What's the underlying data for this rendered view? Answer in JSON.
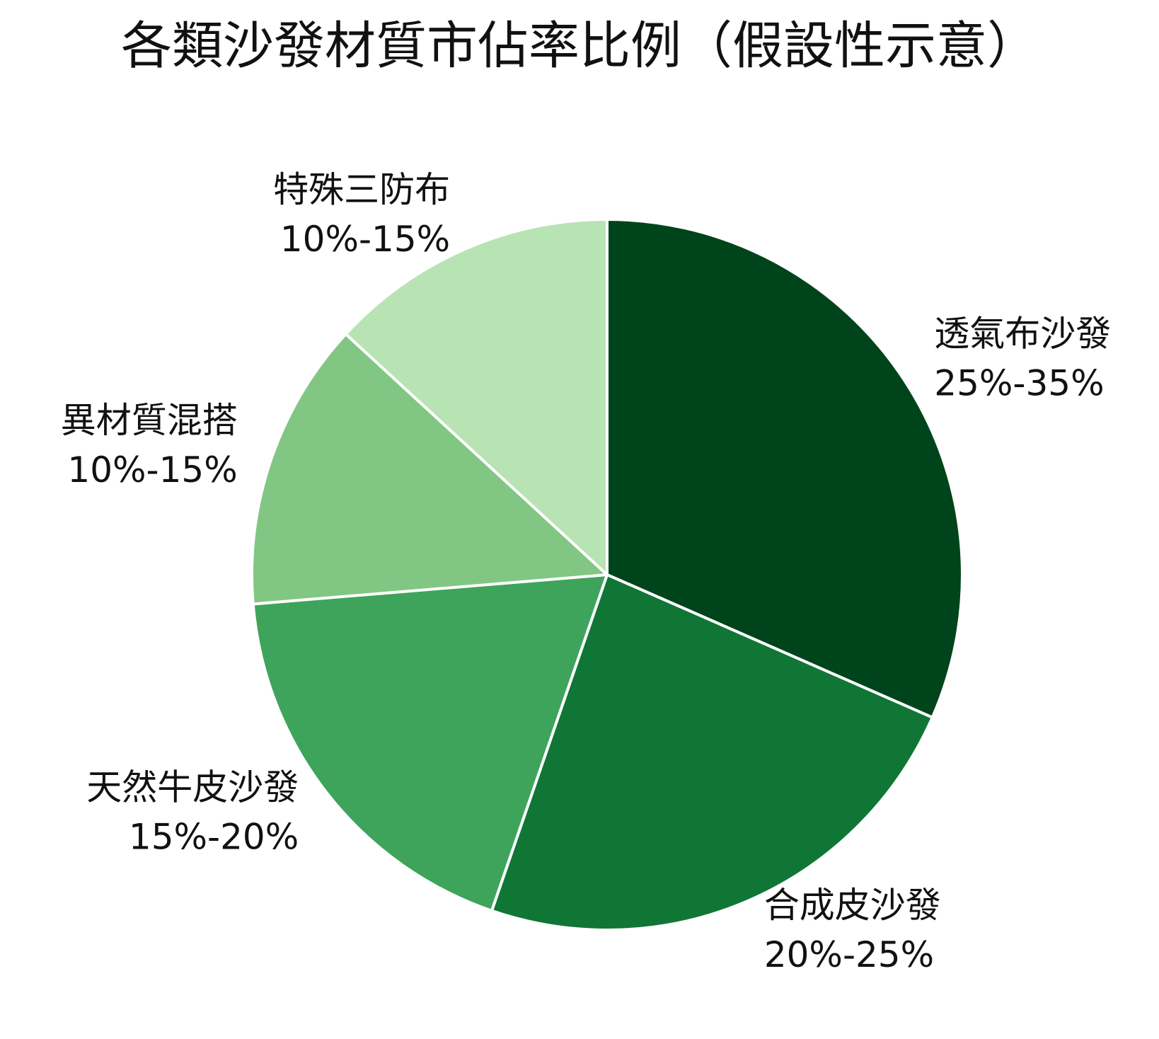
{
  "chart_data": {
    "type": "pie",
    "title": "各類沙發材質市佔率比例（假設性示意）",
    "categories": [
      "透氣布沙發",
      "合成皮沙發",
      "天然牛皮沙發",
      "異材質混搭",
      "特殊三防布"
    ],
    "values": [
      30,
      22.5,
      17.5,
      12.5,
      12.5
    ],
    "value_labels": [
      "25%-35%",
      "20%-25%",
      "15%-20%",
      "10%-15%",
      "10%-15%"
    ],
    "colors": [
      "#00441b",
      "#107636",
      "#3fa45b",
      "#81c783",
      "#b8e3b3"
    ]
  }
}
